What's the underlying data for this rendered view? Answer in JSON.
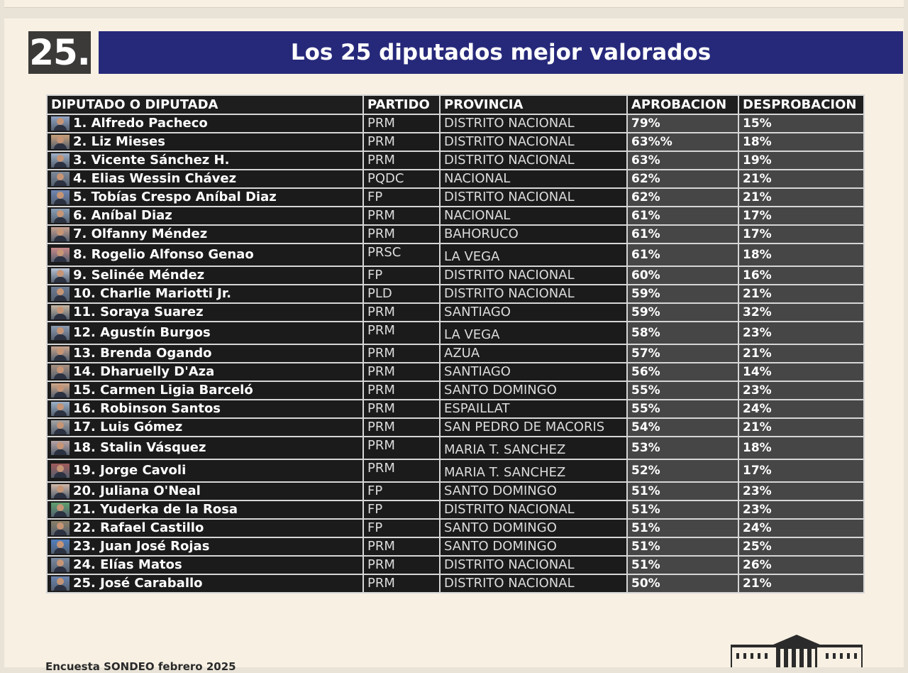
{
  "header": {
    "number": "25.",
    "title": "Los 25 diputados mejor valorados"
  },
  "table": {
    "columns": [
      "DIPUTADO O DIPUTADA",
      "PARTIDO",
      "PROVINCIA",
      "APROBACION",
      "DESPROBACION"
    ],
    "rows": [
      {
        "name": "1. Alfredo Pacheco",
        "party": "PRM",
        "province": "DISTRITO NACIONAL",
        "approval": "79%",
        "disapproval": "15%"
      },
      {
        "name": "2. Liz Mieses",
        "party": "PRM",
        "province": "DISTRITO NACIONAL",
        "approval": "63%%",
        "disapproval": "18%"
      },
      {
        "name": "3. Vicente Sánchez H.",
        "party": "PRM",
        "province": "DISTRITO NACIONAL",
        "approval": "63%",
        "disapproval": "19%"
      },
      {
        "name": "4. Elias Wessin Chávez",
        "party": "PQDC",
        "province": "NACIONAL",
        "approval": "62%",
        "disapproval": "21%"
      },
      {
        "name": "5. Tobías Crespo Aníbal Diaz",
        "party": "FP",
        "province": "DISTRITO NACIONAL",
        "approval": "62%",
        "disapproval": "21%"
      },
      {
        "name": "6. Aníbal Diaz",
        "party": "PRM",
        "province": " NACIONAL",
        "approval": "61%",
        "disapproval": "17%"
      },
      {
        "name": "7. Olfanny Méndez",
        "party": "PRM",
        "province": "BAHORUCO",
        "approval": "61%",
        "disapproval": "17%"
      },
      {
        "name": "8. Rogelio Alfonso Genao",
        "party": "PRSC",
        "province": "LA VEGA",
        "approval": "61%",
        "disapproval": "18%",
        "tall": true
      },
      {
        "name": "9. Selinée Méndez",
        "party": "FP",
        "province": "DISTRITO NACIONAL",
        "approval": "60%",
        "disapproval": "16%"
      },
      {
        "name": "10. Charlie Mariotti Jr.",
        "party": "PLD",
        "province": "DISTRITO NACIONAL",
        "approval": "59%",
        "disapproval": "21%"
      },
      {
        "name": "11. Soraya Suarez",
        "party": "PRM",
        "province": "SANTIAGO",
        "approval": "59%",
        "disapproval": "32%"
      },
      {
        "name": "12. Agustín Burgos",
        "party": "PRM",
        "province": "LA VEGA",
        "approval": "58%",
        "disapproval": "23%",
        "tall": true
      },
      {
        "name": "13. Brenda Ogando",
        "party": "PRM",
        "province": "AZUA",
        "approval": "57%",
        "disapproval": "21%"
      },
      {
        "name": "14. Dharuelly D'Aza",
        "party": "PRM",
        "province": "SANTIAGO",
        "approval": "56%",
        "disapproval": "14%"
      },
      {
        "name": "15. Carmen Ligia Barceló",
        "party": "PRM",
        "province": "SANTO DOMINGO",
        "approval": "55%",
        "disapproval": "23%"
      },
      {
        "name": "16. Robinson Santos",
        "party": "PRM",
        "province": "ESPAILLAT",
        "approval": "55%",
        "disapproval": "24%"
      },
      {
        "name": "17. Luis Gómez",
        "party": "PRM",
        "province": "SAN PEDRO DE MACORIS",
        "approval": "54%",
        "disapproval": "21%"
      },
      {
        "name": "18. Stalin Vásquez",
        "party": "PRM",
        "province": "MARIA T. SANCHEZ",
        "approval": "53%",
        "disapproval": "18%",
        "tall": true
      },
      {
        "name": "19. Jorge Cavoli",
        "party": "PRM",
        "province": "MARIA T. SANCHEZ",
        "approval": "52%",
        "disapproval": "17%",
        "tall": true
      },
      {
        "name": "20. Juliana O'Neal",
        "party": "FP",
        "province": "SANTO DOMINGO",
        "approval": "51%",
        "disapproval": "23%"
      },
      {
        "name": "21. Yuderka de la Rosa",
        "party": "FP",
        "province": "DISTRITO NACIONAL",
        "approval": "51%",
        "disapproval": "23%"
      },
      {
        "name": "22. Rafael Castillo",
        "party": "FP",
        "province": "SANTO DOMINGO",
        "approval": "51%",
        "disapproval": "24%"
      },
      {
        "name": "23. Juan José Rojas",
        "party": "PRM",
        "province": "SANTO DOMINGO",
        "approval": "51%",
        "disapproval": "25%"
      },
      {
        "name": "24. Elías Matos",
        "party": "PRM",
        "province": "DISTRITO NACIONAL",
        "approval": "51%",
        "disapproval": "26%"
      },
      {
        "name": "25. José Caraballo",
        "party": "PRM",
        "province": "DISTRITO NACIONAL",
        "approval": "50%",
        "disapproval": "21%"
      }
    ]
  },
  "footer": {
    "source": "Encuesta SONDEO febrero 2025"
  },
  "colors": {
    "banner": "#26297a",
    "badge": "#3b3a38",
    "background": "#f7f0e3"
  }
}
